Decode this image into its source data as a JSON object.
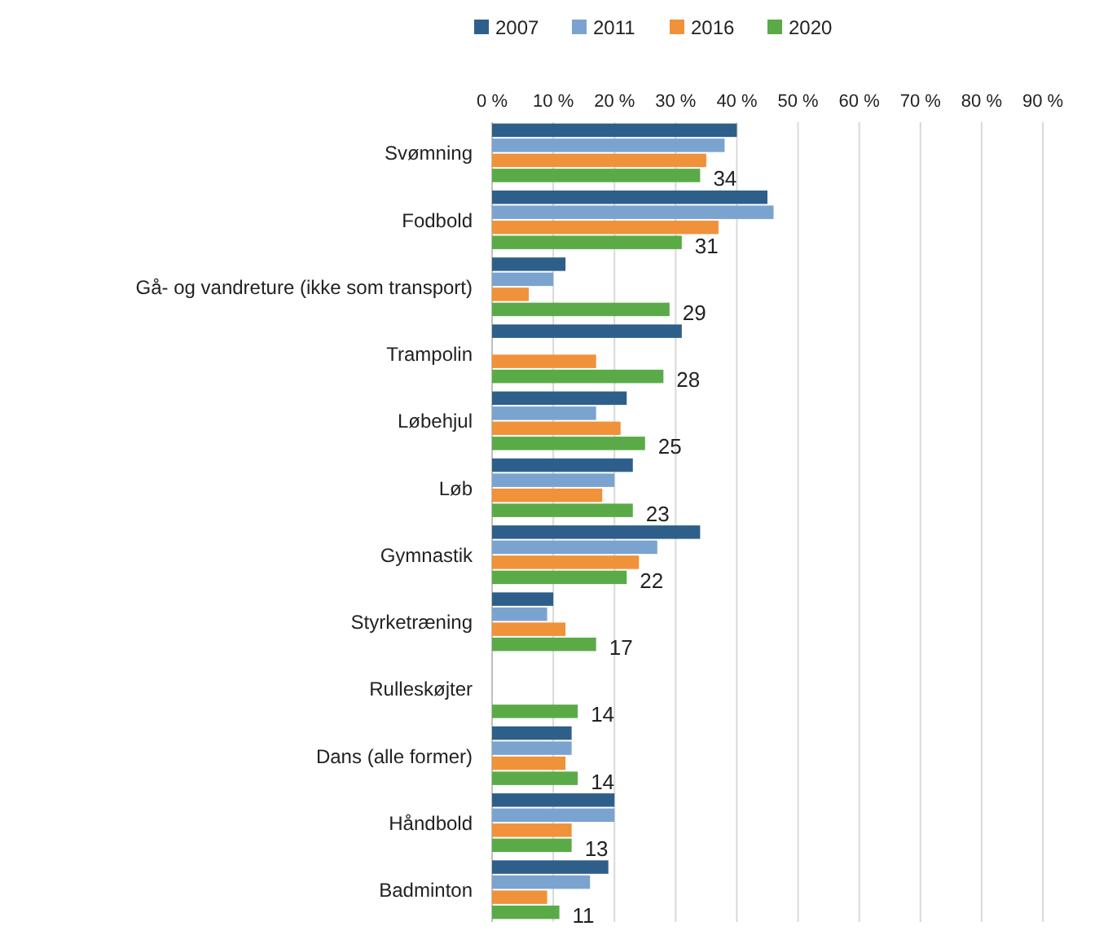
{
  "chart_data": {
    "type": "bar",
    "orientation": "horizontal",
    "categories": [
      "Svømning",
      "Fodbold",
      "Gå- og vandreture (ikke som transport)",
      "Trampolin",
      "Løbehjul",
      "Løb",
      "Gymnastik",
      "Styrketræning",
      "Rulleskøjter",
      "Dans (alle former)",
      "Håndbold",
      "Badminton"
    ],
    "series": [
      {
        "name": "2007",
        "color": "#2e5f8a",
        "values": [
          40,
          45,
          12,
          31,
          22,
          23,
          34,
          10,
          null,
          13,
          20,
          19
        ]
      },
      {
        "name": "2011",
        "color": "#7ba3d0",
        "values": [
          38,
          46,
          10,
          null,
          17,
          20,
          27,
          9,
          null,
          13,
          20,
          16
        ]
      },
      {
        "name": "2016",
        "color": "#f0923a",
        "values": [
          35,
          37,
          6,
          17,
          21,
          18,
          24,
          12,
          null,
          12,
          13,
          9
        ]
      },
      {
        "name": "2020",
        "color": "#5aab47",
        "values": [
          34,
          31,
          29,
          28,
          25,
          23,
          22,
          17,
          14,
          14,
          13,
          11
        ],
        "value_labels": [
          "34",
          "31",
          "29",
          "28",
          "25",
          "23",
          "22",
          "17",
          "14",
          "14",
          "13",
          "11"
        ]
      }
    ],
    "xlim": [
      0,
      90
    ],
    "xticks": [
      {
        "value": 0,
        "label": "0 %"
      },
      {
        "value": 10,
        "label": "10 %"
      },
      {
        "value": 20,
        "label": "20 %"
      },
      {
        "value": 30,
        "label": "30 %"
      },
      {
        "value": 40,
        "label": "40 %"
      },
      {
        "value": 50,
        "label": "50 %"
      },
      {
        "value": 60,
        "label": "60 %"
      },
      {
        "value": 70,
        "label": "70 %"
      },
      {
        "value": 80,
        "label": "80 %"
      },
      {
        "value": 90,
        "label": "90 %"
      }
    ],
    "grid": "x",
    "legend": "top"
  }
}
